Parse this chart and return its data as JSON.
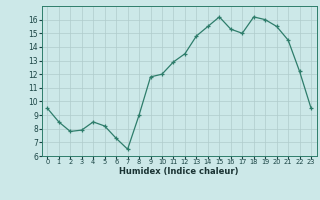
{
  "x": [
    0,
    1,
    2,
    3,
    4,
    5,
    6,
    7,
    8,
    9,
    10,
    11,
    12,
    13,
    14,
    15,
    16,
    17,
    18,
    19,
    20,
    21,
    22,
    23
  ],
  "y": [
    9.5,
    8.5,
    7.8,
    7.9,
    8.5,
    8.2,
    7.3,
    6.5,
    9.0,
    11.8,
    12.0,
    12.9,
    13.5,
    14.8,
    15.5,
    16.2,
    15.3,
    15.0,
    16.2,
    16.0,
    15.5,
    14.5,
    12.2,
    9.5
  ],
  "xlabel": "Humidex (Indice chaleur)",
  "xlim": [
    -0.5,
    23.5
  ],
  "ylim": [
    6,
    17
  ],
  "yticks": [
    6,
    7,
    8,
    9,
    10,
    11,
    12,
    13,
    14,
    15,
    16
  ],
  "xticks": [
    0,
    1,
    2,
    3,
    4,
    5,
    6,
    7,
    8,
    9,
    10,
    11,
    12,
    13,
    14,
    15,
    16,
    17,
    18,
    19,
    20,
    21,
    22,
    23
  ],
  "line_color": "#2e7d6b",
  "marker": "+",
  "bg_color": "#cce8e8",
  "grid_color": "#b0cccc",
  "spine_color": "#2e7d6b",
  "tick_color": "#1a4444",
  "xlabel_color": "#1a3333"
}
